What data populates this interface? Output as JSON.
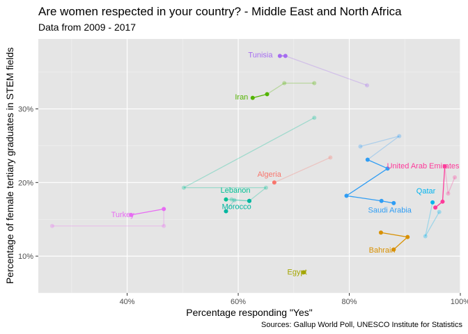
{
  "chart_data": {
    "type": "scatter",
    "title": "Are women respected in your country? - Middle East and North Africa",
    "subtitle": "Data from 2009 - 2017",
    "caption": "Sources: Gallup World Poll, UNESCO Institute for Statistics",
    "xlabel": "Percentage responding \"Yes\"",
    "ylabel": "Percentage of female tertiary graduates in STEM fields",
    "xlim": [
      0.24,
      1.0
    ],
    "ylim": [
      0.05,
      0.395
    ],
    "x_ticks": [
      {
        "value": 0.4,
        "label": "40%"
      },
      {
        "value": 0.6,
        "label": "60%"
      },
      {
        "value": 0.8,
        "label": "80%"
      },
      {
        "value": 1.0,
        "label": "100%"
      }
    ],
    "y_ticks": [
      {
        "value": 0.1,
        "label": "10%"
      },
      {
        "value": 0.2,
        "label": "20%"
      },
      {
        "value": 0.3,
        "label": "30%"
      }
    ],
    "grid": true,
    "panel_background": "#e5e5e5",
    "series": [
      {
        "name": "Tunisia",
        "color": "#a56cf0",
        "points": [
          [
            0.675,
            0.372
          ],
          [
            0.685,
            0.372
          ],
          [
            0.832,
            0.332
          ]
        ],
        "faded": [
          false,
          false,
          true
        ],
        "label": {
          "x": 0.64,
          "y": 0.37
        }
      },
      {
        "name": "Iran",
        "color": "#53b400",
        "points": [
          [
            0.626,
            0.315
          ],
          [
            0.652,
            0.32
          ],
          [
            0.683,
            0.335
          ],
          [
            0.737,
            0.335
          ]
        ],
        "faded": [
          false,
          false,
          true,
          true
        ],
        "label": {
          "x": 0.606,
          "y": 0.313
        }
      },
      {
        "name": "Algeria",
        "color": "#f8766d",
        "points": [
          [
            0.665,
            0.2
          ],
          [
            0.766,
            0.234
          ]
        ],
        "faded": [
          false,
          true
        ],
        "label": {
          "x": 0.656,
          "y": 0.208
        }
      },
      {
        "name": "Lebanon",
        "color": "#00c094",
        "points": [
          [
            0.578,
            0.177
          ],
          [
            0.588,
            0.177
          ],
          [
            0.62,
            0.175
          ],
          [
            0.65,
            0.193
          ],
          [
            0.502,
            0.193
          ],
          [
            0.737,
            0.288
          ]
        ],
        "faded": [
          false,
          true,
          false,
          true,
          true,
          true
        ],
        "label": {
          "x": 0.595,
          "y": 0.186
        }
      },
      {
        "name": "Morocco",
        "color": "#00b6a0",
        "points": [
          [
            0.578,
            0.161
          ],
          [
            0.593,
            0.176
          ],
          [
            0.62,
            0.175
          ]
        ],
        "faded": [
          false,
          true,
          false
        ],
        "label": {
          "x": 0.597,
          "y": 0.164
        }
      },
      {
        "name": "Turkey",
        "color": "#e76bf3",
        "points": [
          [
            0.407,
            0.156
          ],
          [
            0.466,
            0.164
          ],
          [
            0.466,
            0.141
          ],
          [
            0.265,
            0.141
          ]
        ],
        "faded": [
          false,
          false,
          true,
          true
        ],
        "label": {
          "x": 0.392,
          "y": 0.153
        }
      },
      {
        "name": "United Arab Emirates",
        "color": "#fd3a9a",
        "points": [
          [
            0.955,
            0.166
          ],
          [
            0.968,
            0.174
          ],
          [
            0.972,
            0.222
          ],
          [
            0.978,
            0.185
          ],
          [
            0.99,
            0.207
          ]
        ],
        "faded": [
          false,
          false,
          false,
          true,
          true
        ],
        "label": {
          "x": 0.933,
          "y": 0.219
        }
      },
      {
        "name": "Qatar",
        "color": "#00b4ef",
        "points": [
          [
            0.95,
            0.173
          ],
          [
            0.937,
            0.127
          ],
          [
            0.962,
            0.16
          ]
        ],
        "faded": [
          false,
          true,
          true
        ],
        "label": {
          "x": 0.938,
          "y": 0.185
        }
      },
      {
        "name": "Saudi Arabia",
        "color": "#2f9df4",
        "points": [
          [
            0.88,
            0.172
          ],
          [
            0.858,
            0.175
          ],
          [
            0.795,
            0.182
          ],
          [
            0.869,
            0.219
          ],
          [
            0.833,
            0.231
          ],
          [
            0.89,
            0.263
          ],
          [
            0.82,
            0.249
          ]
        ],
        "faded": [
          false,
          false,
          false,
          false,
          false,
          true,
          true
        ],
        "label": {
          "x": 0.873,
          "y": 0.159
        }
      },
      {
        "name": "Bahrain",
        "color": "#d89000",
        "points": [
          [
            0.88,
            0.109
          ],
          [
            0.905,
            0.126
          ],
          [
            0.857,
            0.132
          ]
        ],
        "faded": [
          false,
          false,
          false
        ],
        "label": {
          "x": 0.859,
          "y": 0.105
        }
      },
      {
        "name": "Egypt",
        "color": "#a3a500",
        "points": [
          [
            0.718,
            0.078
          ]
        ],
        "faded": [
          false
        ],
        "label": {
          "x": 0.706,
          "y": 0.075
        }
      }
    ]
  }
}
